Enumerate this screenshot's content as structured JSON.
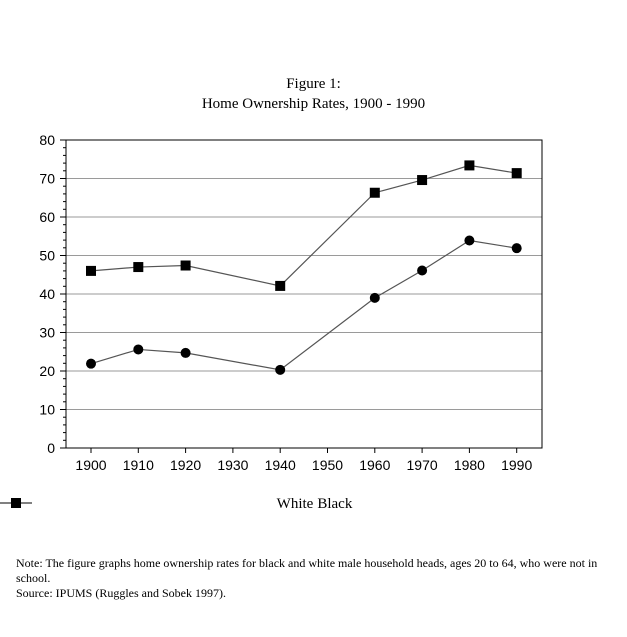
{
  "figure": {
    "label": "Figure 1:",
    "title": "Home Ownership Rates, 1900 - 1990"
  },
  "chart_data": {
    "type": "line",
    "title": "Home Ownership Rates, 1900 - 1990",
    "x": [
      1900,
      1910,
      1920,
      1930,
      1940,
      1950,
      1960,
      1970,
      1980,
      1990
    ],
    "x_tick_labels": [
      "1900",
      "1910",
      "1920",
      "1930",
      "1940",
      "1950",
      "1960",
      "1970",
      "1980",
      "1990"
    ],
    "y_tick_labels": [
      "0",
      "10",
      "20",
      "30",
      "40",
      "50",
      "60",
      "70",
      "80"
    ],
    "ylim": [
      0,
      80
    ],
    "grid": "horizontal",
    "legend": "bottom",
    "series": [
      {
        "name": "White",
        "marker": "square",
        "points": [
          {
            "x": 1900,
            "y": 46.0
          },
          {
            "x": 1910,
            "y": 47.0
          },
          {
            "x": 1920,
            "y": 47.4
          },
          {
            "x": 1940,
            "y": 42.1
          },
          {
            "x": 1960,
            "y": 66.3
          },
          {
            "x": 1970,
            "y": 69.6
          },
          {
            "x": 1980,
            "y": 73.4
          },
          {
            "x": 1990,
            "y": 71.4
          }
        ]
      },
      {
        "name": "Black",
        "marker": "circle",
        "points": [
          {
            "x": 1900,
            "y": 21.9
          },
          {
            "x": 1910,
            "y": 25.6
          },
          {
            "x": 1920,
            "y": 24.7
          },
          {
            "x": 1940,
            "y": 20.3
          },
          {
            "x": 1960,
            "y": 39.0
          },
          {
            "x": 1970,
            "y": 46.1
          },
          {
            "x": 1980,
            "y": 53.9
          },
          {
            "x": 1990,
            "y": 51.9
          }
        ]
      }
    ]
  },
  "notes": {
    "note": "Note: The figure graphs home ownership rates for black and white male household heads, ages 20 to 64, who were not in school.",
    "source": "Source: IPUMS (Ruggles and Sobek 1997)."
  }
}
